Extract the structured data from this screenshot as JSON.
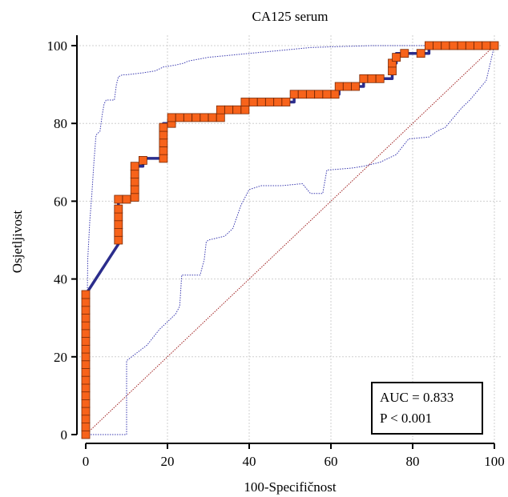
{
  "chart_data": {
    "type": "line",
    "title": "CA125 serum",
    "xlabel": "100-Specifičnost",
    "ylabel": "Osjetljivost",
    "xlim": [
      0,
      100
    ],
    "ylim": [
      0,
      100
    ],
    "xticks": [
      0,
      20,
      40,
      60,
      80,
      100
    ],
    "yticks": [
      0,
      20,
      40,
      60,
      80,
      100
    ],
    "grid": true,
    "annotation": {
      "auc_text": "AUC = 0.833",
      "p_text": "P < 0.001",
      "placement": "bottom-right"
    },
    "colors": {
      "roc_line": "#2b2d8c",
      "marker_fill": "#f7631b",
      "marker_edge": "#7a2a06",
      "ci_line": "#3a3ab0",
      "diagonal": "#a02020"
    },
    "series": [
      {
        "role": "roc-curve",
        "x": [
          0,
          0,
          8,
          8,
          10,
          12,
          12,
          14,
          14,
          19,
          19,
          21,
          21,
          33,
          33,
          39,
          39,
          51,
          51,
          62,
          62,
          68,
          68,
          75,
          75,
          76,
          76,
          82,
          82,
          84,
          84,
          100,
          100
        ],
        "y": [
          0,
          36,
          49,
          61,
          60.5,
          60.5,
          69,
          69,
          71,
          71,
          80,
          80,
          81.5,
          81.5,
          83.5,
          83.5,
          85.5,
          85.5,
          87.5,
          87.5,
          89.5,
          89.5,
          91.5,
          91.5,
          95.5,
          95.5,
          98,
          98,
          98,
          98,
          100,
          100,
          100
        ]
      },
      {
        "role": "ci-upper",
        "x": [
          0,
          0.5,
          1,
          1.5,
          2,
          2.5,
          3,
          3.5,
          4,
          4.5,
          5,
          7,
          7.5,
          8,
          9,
          10,
          14,
          17,
          19,
          22,
          24,
          25,
          30,
          35,
          40,
          45,
          50,
          55,
          60,
          70,
          80,
          90,
          100
        ],
        "y": [
          0,
          45,
          55,
          62,
          70,
          77,
          77.5,
          78,
          82,
          85,
          86,
          86,
          90,
          92,
          92.5,
          92.5,
          93,
          93.5,
          94.5,
          95,
          95.5,
          96,
          97,
          97.5,
          98,
          98.5,
          99,
          99.5,
          99.7,
          100,
          100,
          100,
          100
        ]
      },
      {
        "role": "ci-lower",
        "x": [
          0,
          10,
          10,
          15,
          18,
          20,
          22,
          23,
          23.5,
          28,
          29,
          29.5,
          30,
          34,
          35,
          36,
          38,
          40,
          43,
          48,
          53,
          55,
          58,
          59,
          65,
          68,
          72,
          74,
          76,
          79,
          84,
          86,
          88,
          92,
          94,
          98,
          100
        ],
        "y": [
          0,
          0,
          19,
          23,
          27,
          29,
          31,
          33,
          41,
          41,
          45,
          49.5,
          50,
          51,
          52,
          53,
          59,
          63,
          64,
          64,
          64.5,
          62,
          62,
          68,
          68.5,
          69,
          70,
          71,
          72,
          76,
          76.5,
          78,
          79,
          84,
          86,
          91,
          100
        ]
      },
      {
        "role": "reference-diagonal",
        "x": [
          0,
          100
        ],
        "y": [
          0,
          100
        ]
      }
    ],
    "markers": [
      [
        0,
        0
      ],
      [
        0,
        2
      ],
      [
        0,
        4
      ],
      [
        0,
        6
      ],
      [
        0,
        8
      ],
      [
        0,
        10
      ],
      [
        0,
        12
      ],
      [
        0,
        14
      ],
      [
        0,
        16
      ],
      [
        0,
        18
      ],
      [
        0,
        20
      ],
      [
        0,
        22
      ],
      [
        0,
        24
      ],
      [
        0,
        26
      ],
      [
        0,
        28
      ],
      [
        0,
        30
      ],
      [
        0,
        32
      ],
      [
        0,
        34
      ],
      [
        0,
        36
      ],
      [
        8,
        50
      ],
      [
        8,
        52
      ],
      [
        8,
        54
      ],
      [
        8,
        56
      ],
      [
        8,
        58
      ],
      [
        8,
        60.5
      ],
      [
        10,
        60.5
      ],
      [
        12,
        61
      ],
      [
        12,
        63
      ],
      [
        12,
        65
      ],
      [
        12,
        67
      ],
      [
        12,
        69
      ],
      [
        14,
        70.5
      ],
      [
        19,
        71
      ],
      [
        19,
        73
      ],
      [
        19,
        75
      ],
      [
        19,
        77
      ],
      [
        19,
        79
      ],
      [
        21,
        80
      ],
      [
        21,
        81.5
      ],
      [
        23,
        81.5
      ],
      [
        25,
        81.5
      ],
      [
        27,
        81.5
      ],
      [
        29,
        81.5
      ],
      [
        31,
        81.5
      ],
      [
        33,
        81.5
      ],
      [
        33,
        83.5
      ],
      [
        35,
        83.5
      ],
      [
        37,
        83.5
      ],
      [
        39,
        83.5
      ],
      [
        39,
        85.5
      ],
      [
        41,
        85.5
      ],
      [
        43,
        85.5
      ],
      [
        45,
        85.5
      ],
      [
        47,
        85.5
      ],
      [
        49,
        85.5
      ],
      [
        51,
        87.5
      ],
      [
        53,
        87.5
      ],
      [
        55,
        87.5
      ],
      [
        57,
        87.5
      ],
      [
        59,
        87.5
      ],
      [
        61,
        87.5
      ],
      [
        62,
        89.5
      ],
      [
        64,
        89.5
      ],
      [
        66,
        89.5
      ],
      [
        68,
        91.5
      ],
      [
        70,
        91.5
      ],
      [
        72,
        91.5
      ],
      [
        75,
        93.5
      ],
      [
        75,
        95.5
      ],
      [
        76,
        97
      ],
      [
        78,
        98
      ],
      [
        82,
        98
      ],
      [
        84,
        100
      ],
      [
        86,
        100
      ],
      [
        88,
        100
      ],
      [
        90,
        100
      ],
      [
        92,
        100
      ],
      [
        94,
        100
      ],
      [
        96,
        100
      ],
      [
        98,
        100
      ],
      [
        100,
        100
      ]
    ]
  }
}
